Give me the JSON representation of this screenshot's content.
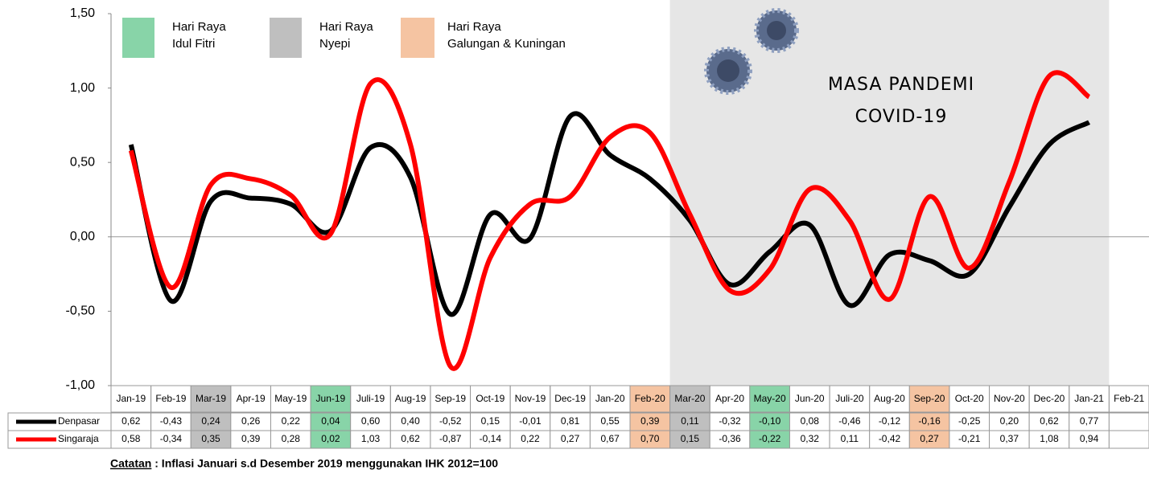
{
  "chart_data": {
    "type": "line",
    "categories": [
      "Jan-19",
      "Feb-19",
      "Mar-19",
      "Apr-19",
      "May-19",
      "Jun-19",
      "Juli-19",
      "Aug-19",
      "Sep-19",
      "Oct-19",
      "Nov-19",
      "Dec-19",
      "Jan-20",
      "Feb-20",
      "Mar-20",
      "Apr-20",
      "May-20",
      "Jun-20",
      "Juli-20",
      "Aug-20",
      "Sep-20",
      "Oct-20",
      "Nov-20",
      "Dec-20",
      "Jan-21",
      "Feb-21"
    ],
    "highlight_colors": [
      null,
      null,
      "#bfbfbf",
      null,
      null,
      "#88d4a8",
      null,
      null,
      null,
      null,
      null,
      null,
      null,
      "#f5c4a2",
      "#bfbfbf",
      null,
      "#88d4a8",
      null,
      null,
      null,
      "#f5c4a2",
      null,
      null,
      null,
      null,
      null
    ],
    "series": [
      {
        "name": "Denpasar",
        "color": "#000000",
        "values": [
          0.62,
          -0.43,
          0.24,
          0.26,
          0.22,
          0.04,
          0.6,
          0.4,
          -0.52,
          0.15,
          -0.01,
          0.81,
          0.55,
          0.39,
          0.11,
          -0.32,
          -0.1,
          0.08,
          -0.46,
          -0.12,
          -0.16,
          -0.25,
          0.2,
          0.62,
          0.77,
          null
        ],
        "value_labels": [
          "0,62",
          "-0,43",
          "0,24",
          "0,26",
          "0,22",
          "0,04",
          "0,60",
          "0,40",
          "-0,52",
          "0,15",
          "-0,01",
          "0,81",
          "0,55",
          "0,39",
          "0,11",
          "-0,32",
          "-0,10",
          "0,08",
          "-0,46",
          "-0,12",
          "-0,16",
          "-0,25",
          "0,20",
          "0,62",
          "0,77",
          null
        ]
      },
      {
        "name": "Singaraja",
        "color": "#ff0000",
        "values": [
          0.58,
          -0.34,
          0.35,
          0.39,
          0.28,
          0.02,
          1.03,
          0.62,
          -0.87,
          -0.14,
          0.22,
          0.27,
          0.67,
          0.7,
          0.15,
          -0.36,
          -0.22,
          0.32,
          0.11,
          -0.42,
          0.27,
          -0.21,
          0.37,
          1.08,
          0.94,
          null
        ],
        "value_labels": [
          "0,58",
          "-0,34",
          "0,35",
          "0,39",
          "0,28",
          "0,02",
          "1,03",
          "0,62",
          "-0,87",
          "-0,14",
          "0,22",
          "0,27",
          "0,67",
          "0,70",
          "0,15",
          "-0,36",
          "-0,22",
          "0,32",
          "0,11",
          "-0,42",
          "0,27",
          "-0,21",
          "0,37",
          "1,08",
          "0,94",
          null
        ]
      }
    ],
    "ylim": [
      -1,
      1.5
    ],
    "yticks": [
      {
        "value": -1,
        "label": "-1,00"
      },
      {
        "value": -0.5,
        "label": "-0,50"
      },
      {
        "value": 0,
        "label": "0,00"
      },
      {
        "value": 0.5,
        "label": "0,50"
      },
      {
        "value": 1,
        "label": "1,00"
      },
      {
        "value": 1.5,
        "label": "1,50"
      }
    ],
    "shaded_region": {
      "from": "Mar-20",
      "to": "Jan-21",
      "color": "#e6e6e6"
    },
    "legend_boxes": [
      {
        "lines": [
          "Hari Raya",
          "Idul Fitri"
        ],
        "color": "#88d4a8"
      },
      {
        "lines": [
          "Hari Raya",
          "Nyepi"
        ],
        "color": "#bfbfbf"
      },
      {
        "lines": [
          "Hari Raya",
          "Galungan & Kuningan"
        ],
        "color": "#f5c4a2"
      }
    ],
    "annotation": [
      "MASA PANDEMI",
      "COVID-19"
    ],
    "note": {
      "label": "Catatan",
      "text": " : Inflasi Januari s.d Desember 2019 menggunakan IHK 2012=100"
    }
  }
}
